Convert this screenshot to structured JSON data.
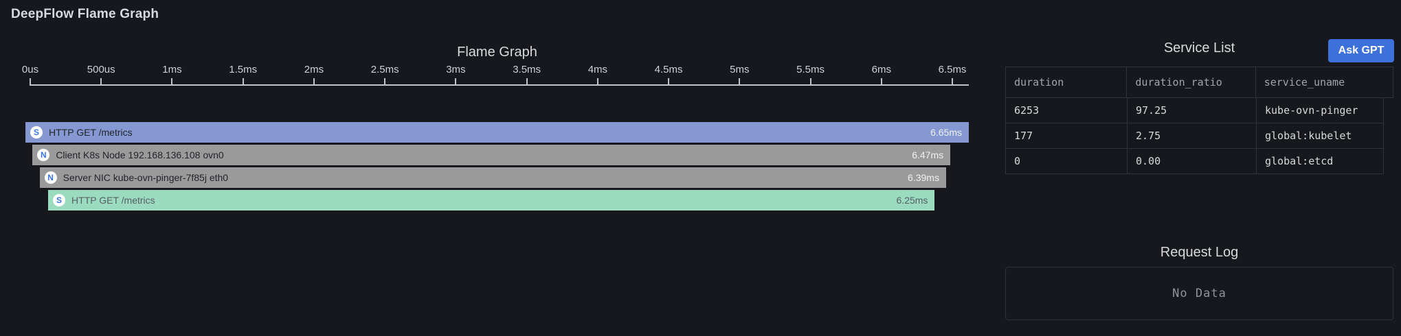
{
  "page": {
    "title": "DeepFlow Flame Graph"
  },
  "flame_graph": {
    "title": "Flame Graph",
    "total_ms": 6.65,
    "tick_interval_ms": 0.5,
    "ticks": [
      "0us",
      "500us",
      "1ms",
      "1.5ms",
      "2ms",
      "2.5ms",
      "3ms",
      "3.5ms",
      "4ms",
      "4.5ms",
      "5ms",
      "5.5ms",
      "6ms",
      "6.5ms"
    ],
    "bars": [
      {
        "badge": "S",
        "label": "HTTP GET /metrics",
        "duration_label": "6.65ms",
        "duration_ms": 6.65,
        "start_ms": 0,
        "bg": "#8598d2",
        "fg": "#21242a",
        "duration_fg": "#eef1f3"
      },
      {
        "badge": "N",
        "label": "Client K8s Node 192.168.136.108 ovn0",
        "duration_label": "6.47ms",
        "duration_ms": 6.47,
        "start_ms": 0.05,
        "bg": "#9a9a9a",
        "fg": "#21242a",
        "duration_fg": "#eef1f3"
      },
      {
        "badge": "N",
        "label": "Server NIC kube-ovn-pinger-7f85j eth0",
        "duration_label": "6.39ms",
        "duration_ms": 6.39,
        "start_ms": 0.1,
        "bg": "#9a9a9a",
        "fg": "#21242a",
        "duration_fg": "#eef1f3"
      },
      {
        "badge": "S",
        "label": "HTTP GET /metrics",
        "duration_label": "6.25ms",
        "duration_ms": 6.25,
        "start_ms": 0.16,
        "bg": "#9bdbc0",
        "fg": "#575e66",
        "duration_fg": "#575e66"
      }
    ]
  },
  "service_list": {
    "title": "Service List",
    "ask_gpt_label": "Ask GPT",
    "columns": [
      "duration",
      "duration_ratio",
      "service_uname"
    ],
    "rows": [
      [
        "6253",
        "97.25",
        "kube-ovn-pinger"
      ],
      [
        "177",
        "2.75",
        "global:kubelet"
      ],
      [
        "0",
        "0.00",
        "global:etcd"
      ]
    ]
  },
  "request_log": {
    "title": "Request Log",
    "empty_text": "No Data"
  },
  "colors": {
    "background": "#16181d",
    "accent_blue": "#3d71d9",
    "badge_letter_blue": "#3b76e0",
    "bar_blue": "#8598d2",
    "bar_gray": "#9a9a9a",
    "bar_green": "#9bdbc0"
  },
  "chart_data": {
    "type": "flame",
    "title": "Flame Graph",
    "x_unit": "ms",
    "x_range_ms": [
      0,
      6.65
    ],
    "x_tick_labels": [
      "0us",
      "500us",
      "1ms",
      "1.5ms",
      "2ms",
      "2.5ms",
      "3ms",
      "3.5ms",
      "4ms",
      "4.5ms",
      "5ms",
      "5.5ms",
      "6ms",
      "6.5ms"
    ],
    "frames": [
      {
        "depth": 0,
        "type": "S",
        "label": "HTTP GET /metrics",
        "start_ms": 0,
        "duration_ms": 6.65
      },
      {
        "depth": 1,
        "type": "N",
        "label": "Client K8s Node 192.168.136.108 ovn0",
        "start_ms": 0.05,
        "duration_ms": 6.47
      },
      {
        "depth": 2,
        "type": "N",
        "label": "Server NIC kube-ovn-pinger-7f85j eth0",
        "start_ms": 0.1,
        "duration_ms": 6.39
      },
      {
        "depth": 3,
        "type": "S",
        "label": "HTTP GET /metrics",
        "start_ms": 0.16,
        "duration_ms": 6.25
      }
    ]
  }
}
